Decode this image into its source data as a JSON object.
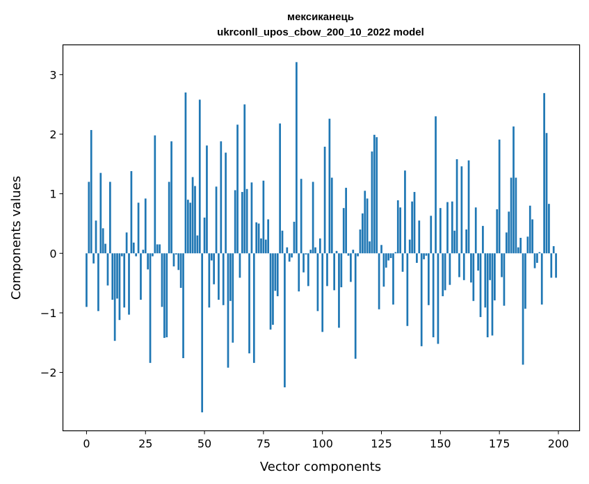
{
  "chart_data": {
    "type": "bar",
    "title": "мексиканець",
    "subtitle": "ukrconll_upos_cbow_200_10_2022 model",
    "xlabel": "Vector components",
    "ylabel": "Components values",
    "xlim": [
      -10,
      209
    ],
    "ylim": [
      -2.98,
      3.5
    ],
    "xticks": [
      0,
      25,
      50,
      75,
      100,
      125,
      150,
      175,
      200
    ],
    "yticks": [
      -2,
      -1,
      0,
      1,
      2,
      3
    ],
    "ytick_labels": [
      "−2",
      "−1",
      "0",
      "1",
      "2",
      "3"
    ],
    "bar_color": "#1f77b4",
    "grid": false,
    "x": [
      0,
      1,
      2,
      3,
      4,
      5,
      6,
      7,
      8,
      9,
      10,
      11,
      12,
      13,
      14,
      15,
      16,
      17,
      18,
      19,
      20,
      21,
      22,
      23,
      24,
      25,
      26,
      27,
      28,
      29,
      30,
      31,
      32,
      33,
      34,
      35,
      36,
      37,
      38,
      39,
      40,
      41,
      42,
      43,
      44,
      45,
      46,
      47,
      48,
      49,
      50,
      51,
      52,
      53,
      54,
      55,
      56,
      57,
      58,
      59,
      60,
      61,
      62,
      63,
      64,
      65,
      66,
      67,
      68,
      69,
      70,
      71,
      72,
      73,
      74,
      75,
      76,
      77,
      78,
      79,
      80,
      81,
      82,
      83,
      84,
      85,
      86,
      87,
      88,
      89,
      90,
      91,
      92,
      93,
      94,
      95,
      96,
      97,
      98,
      99,
      100,
      101,
      102,
      103,
      104,
      105,
      106,
      107,
      108,
      109,
      110,
      111,
      112,
      113,
      114,
      115,
      116,
      117,
      118,
      119,
      120,
      121,
      122,
      123,
      124,
      125,
      126,
      127,
      128,
      129,
      130,
      131,
      132,
      133,
      134,
      135,
      136,
      137,
      138,
      139,
      140,
      141,
      142,
      143,
      144,
      145,
      146,
      147,
      148,
      149,
      150,
      151,
      152,
      153,
      154,
      155,
      156,
      157,
      158,
      159,
      160,
      161,
      162,
      163,
      164,
      165,
      166,
      167,
      168,
      169,
      170,
      171,
      172,
      173,
      174,
      175,
      176,
      177,
      178,
      179,
      180,
      181,
      182,
      183,
      184,
      185,
      186,
      187,
      188,
      189,
      190,
      191,
      192,
      193,
      194,
      195,
      196,
      197,
      198,
      199
    ],
    "values": [
      -0.9,
      1.2,
      2.07,
      -0.17,
      0.55,
      -0.97,
      1.35,
      0.42,
      0.16,
      -0.54,
      1.2,
      -0.78,
      -1.47,
      -0.76,
      -1.12,
      -0.05,
      -0.91,
      0.35,
      -1.03,
      1.38,
      0.18,
      -0.05,
      0.85,
      -0.78,
      0.06,
      0.92,
      -0.27,
      -1.84,
      -0.05,
      1.98,
      0.15,
      0.15,
      -0.9,
      -1.42,
      -1.41,
      1.2,
      1.88,
      -0.22,
      -0.02,
      -0.28,
      -0.58,
      -1.76,
      2.7,
      0.9,
      0.85,
      1.28,
      1.13,
      0.3,
      2.58,
      -2.67,
      0.6,
      1.81,
      -0.91,
      -0.12,
      -0.52,
      1.12,
      -0.78,
      1.88,
      -0.87,
      1.69,
      -1.92,
      -0.8,
      -1.5,
      1.06,
      2.16,
      -0.41,
      1.03,
      2.5,
      1.08,
      -1.68,
      1.19,
      -1.84,
      0.52,
      0.5,
      0.25,
      1.22,
      0.23,
      0.57,
      -1.28,
      -1.2,
      -0.63,
      -0.72,
      2.18,
      0.38,
      -2.25,
      0.1,
      -0.14,
      -0.07,
      0.53,
      3.21,
      -0.64,
      1.25,
      -0.32,
      -0.02,
      -0.55,
      0.06,
      1.2,
      0.1,
      -0.97,
      0.25,
      -1.32,
      1.79,
      -0.55,
      2.26,
      1.27,
      -0.62,
      0.04,
      -1.25,
      -0.57,
      0.76,
      1.1,
      -0.04,
      -0.48,
      0.06,
      -1.77,
      -0.05,
      0.4,
      0.67,
      1.05,
      0.92,
      0.2,
      1.71,
      1.99,
      1.95,
      -0.94,
      0.14,
      -0.56,
      -0.24,
      -0.12,
      -0.08,
      -0.86,
      0.02,
      0.89,
      0.77,
      -0.31,
      1.39,
      -1.22,
      0.23,
      0.87,
      1.03,
      -0.16,
      0.55,
      -1.56,
      -0.1,
      -0.04,
      -0.87,
      0.63,
      -1.41,
      2.3,
      -1.52,
      0.76,
      -0.72,
      -0.62,
      0.86,
      -0.53,
      0.87,
      0.38,
      1.58,
      -0.4,
      1.46,
      -0.45,
      0.4,
      1.56,
      -0.49,
      -0.8,
      0.77,
      -0.29,
      -1.07,
      0.46,
      -0.91,
      -1.41,
      -0.45,
      -1.38,
      -0.79,
      0.74,
      1.91,
      -0.4,
      -0.88,
      0.35,
      0.7,
      1.27,
      2.13,
      1.27,
      0.1,
      0.26,
      -1.87,
      -0.93,
      0.28,
      0.8,
      0.57,
      -0.25,
      -0.16,
      0.02,
      -0.86,
      2.69,
      2.02,
      0.83,
      -0.41,
      0.12,
      -0.41
    ]
  }
}
